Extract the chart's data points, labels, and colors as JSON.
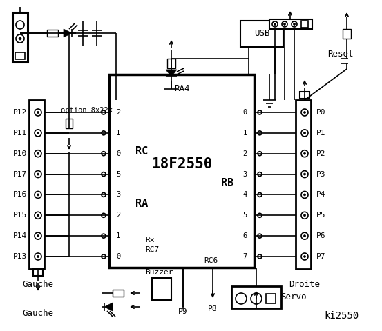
{
  "title": "ki2550",
  "bg_color": "#ffffff",
  "chip_label": "18F2550",
  "chip_sublabel": "RA4",
  "left_connector_label": "Gauche",
  "right_connector_label": "Droite",
  "left_pins": [
    "P12",
    "P11",
    "P10",
    "P17",
    "P16",
    "P15",
    "P14",
    "P13"
  ],
  "left_rc_labels": [
    "2",
    "1",
    "0",
    "5",
    "3",
    "2",
    "1",
    "0"
  ],
  "right_pins": [
    "P0",
    "P1",
    "P2",
    "P3",
    "P4",
    "P5",
    "P6",
    "P7"
  ],
  "right_rb_labels": [
    "0",
    "1",
    "2",
    "3",
    "4",
    "5",
    "6",
    "7"
  ],
  "rc_label": "RC",
  "ra_label": "RA",
  "rb_label": "RB",
  "bottom_labels": [
    "Buzzer",
    "P9",
    "P8",
    "Servo"
  ],
  "usb_label": "USB",
  "reset_label": "Reset",
  "option_label": "option 8x22k",
  "rx_label": "Rx",
  "rc7_label": "RC7",
  "rc6_label": "RC6"
}
